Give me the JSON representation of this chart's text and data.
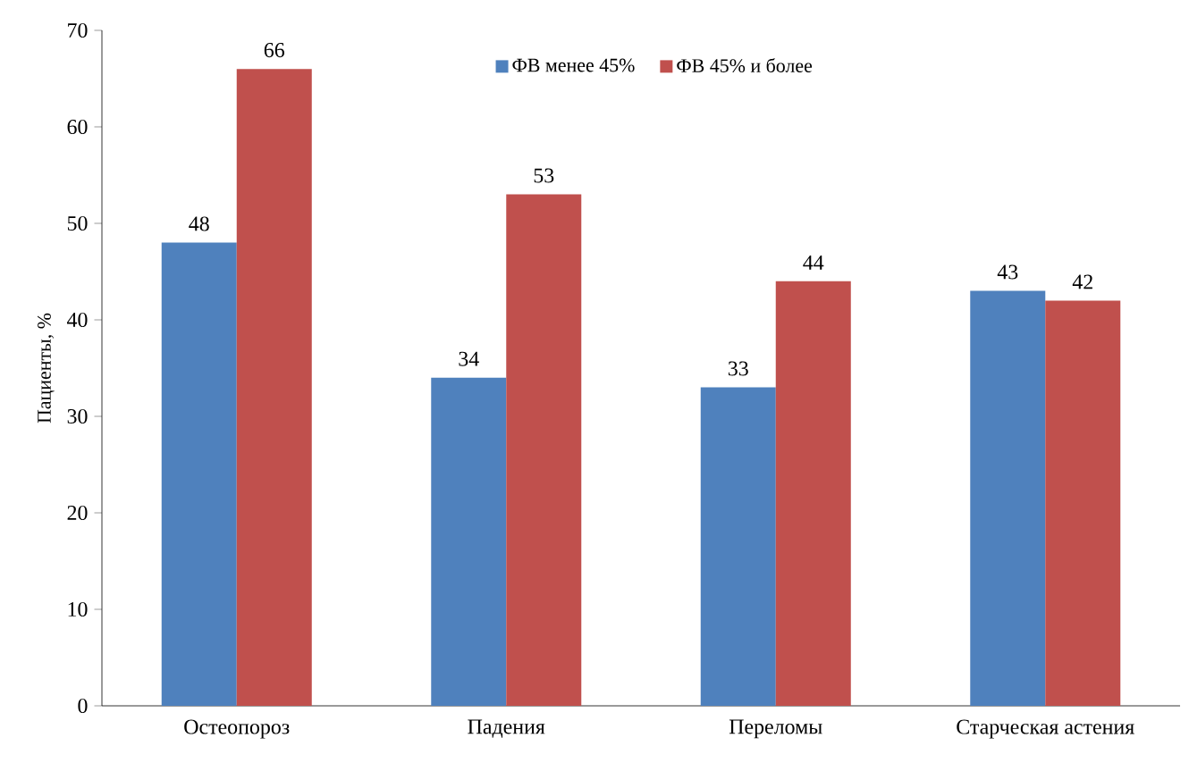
{
  "chart_data": {
    "type": "bar",
    "ylabel": "Пациенты, %",
    "categories": [
      "Остеопороз",
      "Падения",
      "Переломы",
      "Старческая астения"
    ],
    "series": [
      {
        "name": "ФВ менее 45%",
        "color": "#4f81bd",
        "values": [
          48,
          34,
          33,
          43
        ]
      },
      {
        "name": "ФВ 45% и более",
        "color": "#c0504d",
        "values": [
          66,
          53,
          44,
          42
        ]
      }
    ],
    "ylim": [
      0,
      70
    ],
    "yticks": [
      0,
      10,
      20,
      30,
      40,
      50,
      60,
      70
    ],
    "grid": false,
    "legend": "top",
    "data_labels": true
  }
}
